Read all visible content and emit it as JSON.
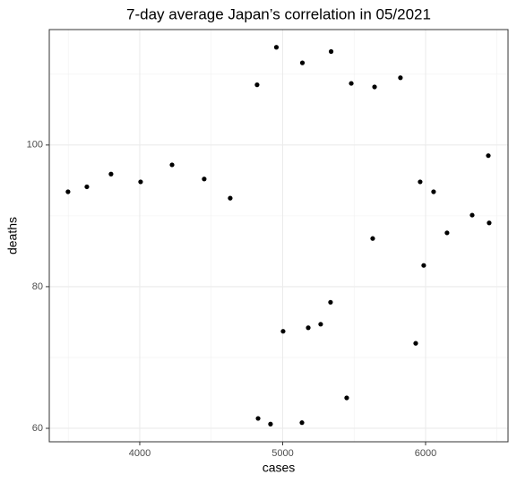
{
  "chart_data": {
    "type": "scatter",
    "title": "7-day average Japan’s correlation in 05/2021",
    "x_label": "cases",
    "y_label": "deaths",
    "color": "#000000",
    "series": [
      {
        "x": [
          3498,
          3630,
          3799,
          4006,
          4226,
          4451,
          4633,
          4821,
          4956,
          5138,
          5339,
          5480,
          5643,
          5824,
          6439,
          5962,
          6056,
          6326,
          6445,
          6150,
          5630,
          5987,
          5931,
          5335,
          5266,
          5179,
          5003,
          5448,
          4828,
          4915,
          5135
        ],
        "values": [
          93.4,
          94.1,
          95.9,
          94.8,
          97.2,
          95.2,
          92.5,
          108.5,
          113.8,
          111.6,
          113.2,
          108.7,
          108.2,
          109.5,
          98.5,
          94.8,
          93.4,
          90.1,
          89.0,
          87.6,
          86.8,
          83.0,
          72.0,
          77.8,
          74.7,
          74.2,
          73.7,
          64.3,
          61.4,
          60.6,
          60.8
        ]
      }
    ],
    "xlim": [
      3367,
      6577
    ],
    "ylim": [
      58.1,
      116.3
    ],
    "xticks": [
      4000,
      5000,
      6000
    ],
    "yticks": [
      60,
      80,
      100
    ],
    "x_minor_grid": [
      3500,
      4500,
      5500,
      6500
    ],
    "y_minor_grid": [
      70,
      90,
      110
    ],
    "grid": true
  }
}
